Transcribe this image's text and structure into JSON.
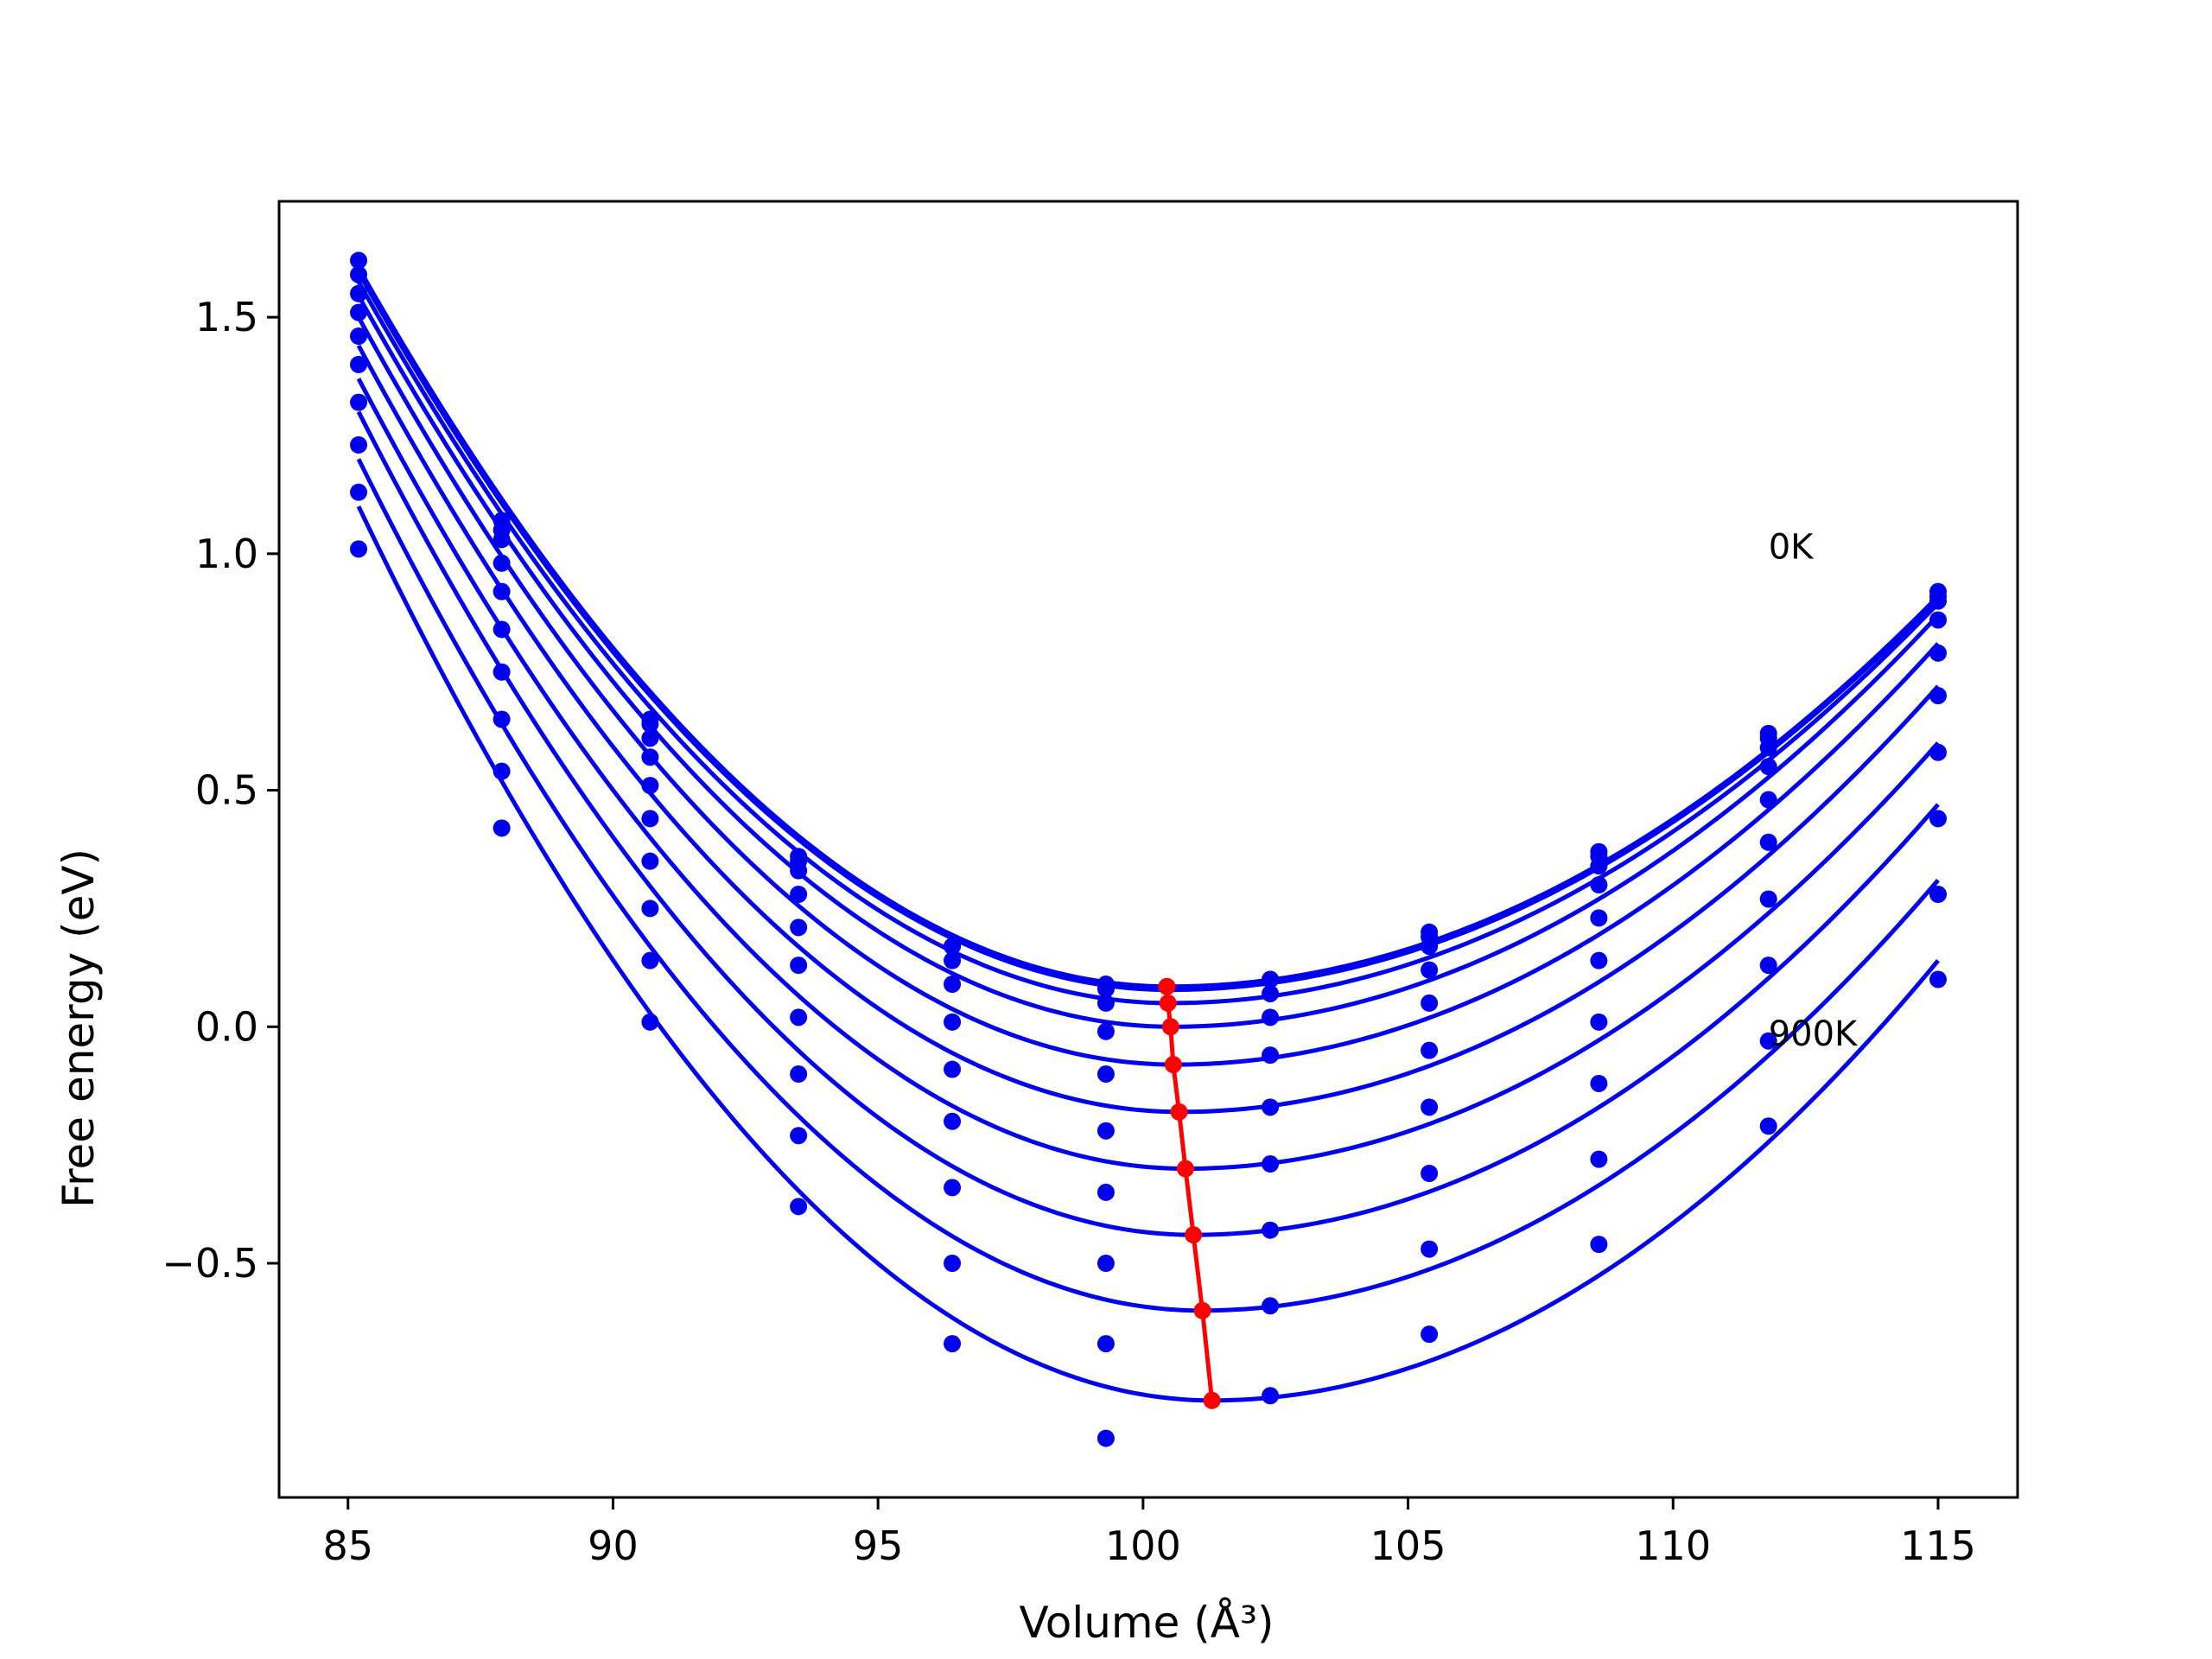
{
  "chart_data": {
    "type": "line",
    "title": "",
    "xlabel": "Volume (Å³)",
    "ylabel": "Free energy (eV)",
    "xlim": [
      83.7,
      116.5
    ],
    "ylim": [
      -0.995,
      1.745
    ],
    "xticks": [
      85,
      90,
      95,
      100,
      105,
      110,
      115
    ],
    "yticks": [
      -0.5,
      0.0,
      0.5,
      1.0,
      1.5
    ],
    "xtick_labels": [
      "85",
      "90",
      "95",
      "100",
      "105",
      "110",
      "115"
    ],
    "ytick_labels": [
      "−0.5",
      "0.0",
      "0.5",
      "1.0",
      "1.5"
    ],
    "grid": false,
    "legend": "none",
    "annotations": [
      {
        "text": "0K",
        "x": 111.8,
        "y": 0.99
      },
      {
        "text": "900K",
        "x": 111.8,
        "y": -0.04
      }
    ],
    "colors": {
      "fit": "#0000ee",
      "data": "#0000ee",
      "minima": "#ff0000",
      "axes": "#000000"
    },
    "x": [
      85.2,
      87.9,
      90.7,
      93.5,
      96.4,
      99.3,
      102.4,
      105.4,
      108.6,
      111.8,
      115.0
    ],
    "series": [
      {
        "values": [
          1.62,
          1.07,
          0.65,
          0.36,
          0.17,
          0.09,
          0.1,
          0.2,
          0.37,
          0.62,
          0.92
        ],
        "fit": {
          "min_x": 100.5,
          "min_y": 0.085,
          "left_x": 85.2,
          "left_y": 1.605,
          "right_x": 115.0,
          "right_y": 0.91
        }
      },
      {
        "values": [
          1.59,
          1.05,
          0.64,
          0.35,
          0.17,
          0.08,
          0.1,
          0.19,
          0.36,
          0.61,
          0.91
        ],
        "fit": {
          "min_x": 100.5,
          "min_y": 0.078,
          "left_x": 85.2,
          "left_y": 1.595,
          "right_x": 115.0,
          "right_y": 0.905
        }
      },
      {
        "values": [
          1.55,
          1.03,
          0.61,
          0.33,
          0.14,
          0.05,
          0.07,
          0.17,
          0.34,
          0.59,
          0.9
        ],
        "fit": {
          "min_x": 100.5,
          "min_y": 0.05,
          "left_x": 85.2,
          "left_y": 1.575,
          "right_x": 115.0,
          "right_y": 0.895
        }
      },
      {
        "values": [
          1.51,
          0.98,
          0.57,
          0.28,
          0.09,
          -0.01,
          0.02,
          0.12,
          0.3,
          0.55,
          0.86
        ],
        "fit": {
          "min_x": 100.55,
          "min_y": 0.0,
          "left_x": 85.2,
          "left_y": 1.545,
          "right_x": 115.0,
          "right_y": 0.87
        }
      },
      {
        "values": [
          1.46,
          0.92,
          0.51,
          0.21,
          0.01,
          -0.1,
          -0.06,
          0.05,
          0.23,
          0.48,
          0.79
        ],
        "fit": {
          "min_x": 100.6,
          "min_y": -0.08,
          "left_x": 85.2,
          "left_y": 1.5,
          "right_x": 115.0,
          "right_y": 0.81
        }
      },
      {
        "values": [
          1.4,
          0.84,
          0.44,
          0.13,
          -0.09,
          -0.22,
          -0.17,
          -0.05,
          0.14,
          0.39,
          0.7
        ],
        "fit": {
          "min_x": 100.7,
          "min_y": -0.18,
          "left_x": 85.2,
          "left_y": 1.44,
          "right_x": 115.0,
          "right_y": 0.72
        }
      },
      {
        "values": [
          1.32,
          0.75,
          0.35,
          0.02,
          -0.2,
          -0.35,
          -0.29,
          -0.17,
          0.01,
          0.27,
          0.58
        ],
        "fit": {
          "min_x": 100.8,
          "min_y": -0.3,
          "left_x": 85.2,
          "left_y": 1.37,
          "right_x": 115.0,
          "right_y": 0.6
        }
      },
      {
        "values": [
          1.23,
          0.65,
          0.25,
          -0.1,
          -0.34,
          -0.5,
          -0.43,
          -0.31,
          -0.12,
          0.13,
          0.44
        ],
        "fit": {
          "min_x": 100.95,
          "min_y": -0.44,
          "left_x": 85.2,
          "left_y": 1.3,
          "right_x": 115.0,
          "right_y": 0.47
        }
      },
      {
        "values": [
          1.13,
          0.54,
          0.14,
          -0.23,
          -0.5,
          -0.67,
          -0.59,
          -0.47,
          -0.28,
          -0.03,
          0.28
        ],
        "fit": {
          "min_x": 101.1,
          "min_y": -0.6,
          "left_x": 85.2,
          "left_y": 1.2,
          "right_x": 115.0,
          "right_y": 0.31
        }
      },
      {
        "values": [
          1.01,
          0.42,
          0.01,
          -0.38,
          -0.67,
          -0.87,
          -0.78,
          -0.65,
          -0.46,
          -0.21,
          0.1
        ],
        "fit": {
          "min_x": 101.3,
          "min_y": -0.79,
          "left_x": 85.2,
          "left_y": 1.1,
          "right_x": 115.0,
          "right_y": 0.14
        }
      }
    ],
    "minima_line": {
      "x": [
        100.45,
        100.47,
        100.52,
        100.57,
        100.68,
        100.8,
        100.95,
        101.12,
        101.3
      ],
      "y": [
        0.085,
        0.05,
        0.0,
        -0.08,
        -0.18,
        -0.3,
        -0.44,
        -0.6,
        -0.79
      ]
    }
  }
}
